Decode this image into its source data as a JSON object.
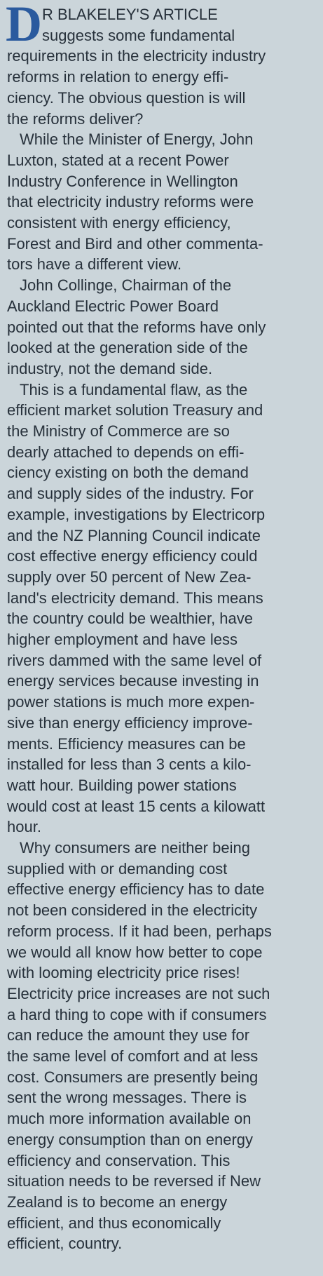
{
  "article": {
    "drop_cap": "D",
    "paragraphs": [
      {
        "lines": [
          "R BLAKELEY'S ARTICLE",
          "suggests some fundamental",
          "requirements in the electricity industry",
          "reforms in relation to energy effi-",
          "ciency. The obvious question is will",
          "the reforms deliver?"
        ]
      },
      {
        "lines": [
          "While the Minister of Energy, John",
          "Luxton, stated at a recent Power",
          "Industry Conference in Wellington",
          "that electricity industry reforms were",
          "consistent with energy efficiency,",
          "Forest and Bird and other commenta-",
          "tors have a different view."
        ]
      },
      {
        "lines": [
          "John Collinge, Chairman of the",
          "Auckland Electric Power Board",
          "pointed out that the reforms have only",
          "looked at the generation side of the",
          "industry, not the demand side."
        ]
      },
      {
        "lines": [
          "This is a fundamental flaw, as the",
          "efficient market solution Treasury and",
          "the Ministry of Commerce are so",
          "dearly attached to depends on effi-",
          "ciency existing on both the demand",
          "and supply sides of the industry. For",
          "example, investigations by Electricorp",
          "and the NZ Planning Council indicate",
          "cost effective energy efficiency could",
          "supply over 50 percent of New Zea-",
          "land's electricity demand. This means",
          "the country could be wealthier, have",
          "higher employment and have less",
          "rivers dammed with the same level of",
          "energy services because investing in",
          "power stations is much more expen-",
          "sive than energy efficiency improve-",
          "ments. Efficiency measures can be",
          "installed for less than 3 cents a kilo-",
          "watt hour. Building power stations",
          "would cost at least 15 cents a kilowatt",
          "hour."
        ]
      },
      {
        "lines": [
          "Why consumers are neither being",
          "supplied with or demanding cost",
          "effective energy efficiency has to date",
          "not been considered in the electricity",
          "reform process. If it had been, perhaps",
          "we would all know how better to cope",
          "with looming electricity price rises!",
          "Electricity price increases are not such",
          "a hard thing to cope with if consumers",
          "can reduce the amount they use for",
          "the same level of comfort and at less",
          "cost. Consumers are presently being",
          "sent the wrong messages. There is",
          "much more information available on",
          "energy consumption than on energy",
          "efficiency and conservation. This",
          "situation needs to be reversed if New",
          "Zealand is to become an energy",
          "efficient, and thus economically",
          "efficient, country."
        ]
      }
    ]
  }
}
